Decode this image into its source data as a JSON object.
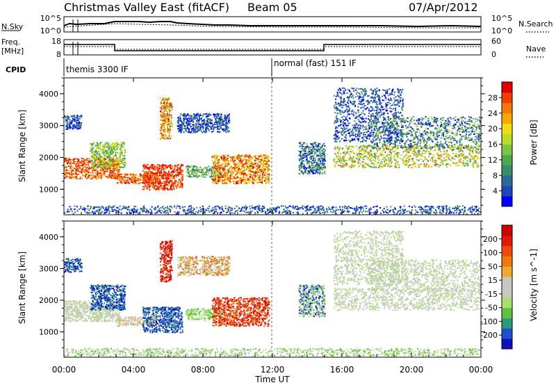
{
  "header": {
    "title": "Christmas Valley East (fitACF)",
    "beam": "Beam 05",
    "date": "07/Apr/2012"
  },
  "top_panels": {
    "noise": {
      "left_label": "N.Sky",
      "left_ticks": [
        "10^5",
        "10^0"
      ],
      "right_ticks": [
        "10^5",
        "10^0"
      ],
      "right_label": "N.Search"
    },
    "frequency": {
      "left_label_1": "Freq.",
      "left_label_2": "[MHz]",
      "left_ticks": [
        "18",
        "8"
      ],
      "right_ticks": [
        "60",
        "0"
      ],
      "right_label": "Nave"
    },
    "cpid": {
      "label": "CPID",
      "segments": [
        {
          "text": "themis 3300 IF",
          "start_hour": 0
        },
        {
          "text": "normal (fast) 151 IF",
          "start_hour": 12
        }
      ]
    }
  },
  "chart_data": [
    {
      "type": "heatmap",
      "name": "power-panel",
      "ylabel": "Slant Range [km]",
      "yticks": [
        1000,
        2000,
        3000,
        4000
      ],
      "ylim": [
        200,
        4500
      ],
      "xlim": [
        0,
        24
      ],
      "colorbar": {
        "label": "Power [dB]",
        "ticks": [
          "28",
          "24",
          "20",
          "16",
          "12",
          "8",
          "4"
        ],
        "colors": [
          "#0000ff",
          "#1e48b8",
          "#2c6a9a",
          "#3a8c6a",
          "#4caa4a",
          "#7cc640",
          "#b8de2a",
          "#f2dc10",
          "#f7a800",
          "#f57800",
          "#f04000",
          "#e00000"
        ]
      }
    },
    {
      "type": "heatmap",
      "name": "velocity-panel",
      "ylabel": "Slant Range [km]",
      "yticks": [
        1000,
        2000,
        3000,
        4000
      ],
      "ylim": [
        200,
        4500
      ],
      "xlim": [
        0,
        24
      ],
      "colorbar": {
        "label": "Velocity [m s^-1]",
        "ticks": [
          "200",
          "100",
          "50",
          "15",
          "-15",
          "-50",
          "-100",
          "-200"
        ],
        "colors": [
          "#1010c0",
          "#2050d0",
          "#2a9a7a",
          "#60c040",
          "#a8e070",
          "#c8c8c0",
          "#c8c8c0",
          "#f0a830",
          "#f07810",
          "#f04a0a",
          "#e01a0a",
          "#d00000"
        ]
      }
    }
  ],
  "xaxis": {
    "ticks": [
      "00:00",
      "04:00",
      "08:00",
      "12:00",
      "16:00",
      "20:00",
      "00:00"
    ],
    "label": "Time UT"
  },
  "colors": {
    "power": [
      "#0000ff",
      "#1e48b8",
      "#2c6a9a",
      "#3a8c6a",
      "#4caa4a",
      "#7cc640",
      "#b8de2a",
      "#f2dc10",
      "#f7a800",
      "#f57800",
      "#f04000",
      "#e00000"
    ],
    "velocity": [
      "#1010c0",
      "#2050d0",
      "#2a9a7a",
      "#60c040",
      "#a8e070",
      "#c8c8c0",
      "#c8c8c0",
      "#f0a830",
      "#f07810",
      "#f04a0a",
      "#e01a0a",
      "#d00000"
    ]
  }
}
